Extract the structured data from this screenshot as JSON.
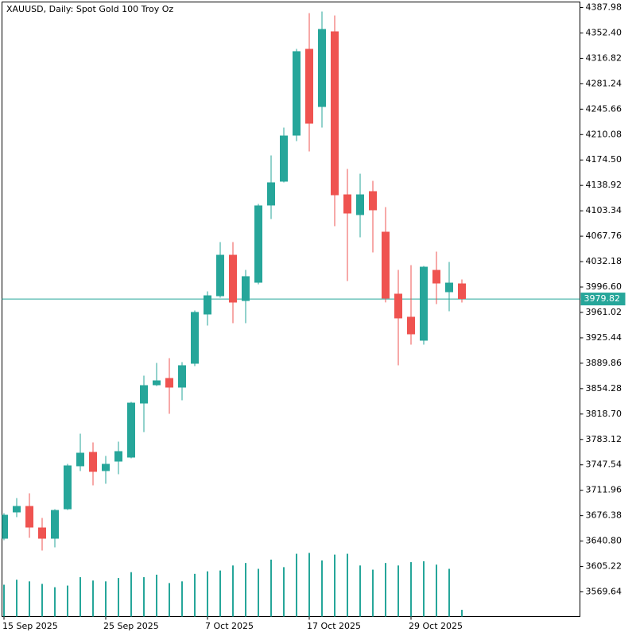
{
  "chart_data": {
    "type": "candlestick",
    "title": "XAUUSD, Daily:  Spot Gold 100 Troy Oz",
    "categories": [
      "15 Sep 2025",
      null,
      null,
      null,
      null,
      null,
      null,
      null,
      "25 Sep 2025",
      null,
      null,
      null,
      null,
      null,
      null,
      null,
      "7 Oct 2025",
      null,
      null,
      null,
      null,
      null,
      null,
      null,
      "17 Oct 2025",
      null,
      null,
      null,
      null,
      null,
      null,
      null,
      "29 Oct 2025",
      null,
      null,
      null,
      null
    ],
    "open": [
      3644.2,
      3681.0,
      3689.9,
      3659.8,
      3644.2,
      3685.4,
      3745.6,
      3765.6,
      3738.9,
      3752.2,
      3757.8,
      3833.5,
      3859.1,
      3869.1,
      3855.8,
      3889.2,
      3958.2,
      3983.8,
      4041.7,
      3977.1,
      4002.7,
      4110.8,
      4144.2,
      4208.7,
      4330.1,
      4248.8,
      4354.6,
      4126.3,
      4097.4,
      4130.8,
      4074.0,
      3987.2,
      3954.9,
      3921.5,
      4020.5,
      3989.4,
      4001.6
    ],
    "high": [
      3679.8,
      3701.0,
      3707.7,
      3673.2,
      3685.4,
      3748.9,
      3791.2,
      3779.0,
      3760.0,
      3780.1,
      3835.7,
      3872.5,
      3890.3,
      3897.0,
      3891.4,
      3963.8,
      3990.5,
      4059.5,
      4059.5,
      4020.5,
      4113.0,
      4180.9,
      4219.8,
      4330.1,
      4380.2,
      4382.4,
      4376.8,
      4162.0,
      4155.3,
      4145.3,
      4108.5,
      4020.5,
      4027.3,
      4026.1,
      4046.2,
      4031.7,
      4007.2
    ],
    "low": [
      3642.0,
      3674.3,
      3645.4,
      3627.5,
      3632.0,
      3684.3,
      3738.9,
      3718.8,
      3721.0,
      3734.4,
      3756.7,
      3793.4,
      3857.9,
      3819.0,
      3838.0,
      3885.9,
      3942.6,
      3981.6,
      3946.0,
      3946.0,
      4000.4,
      4091.8,
      4143.1,
      4200.9,
      4186.5,
      4219.8,
      4081.8,
      4005.0,
      4066.2,
      4045.1,
      3975.0,
      3887.0,
      3915.9,
      3915.9,
      3972.7,
      3962.7,
      3974.9
    ],
    "close": [
      3677.6,
      3689.9,
      3659.8,
      3644.2,
      3684.3,
      3746.7,
      3764.5,
      3737.8,
      3748.9,
      3766.7,
      3834.6,
      3859.1,
      3865.8,
      3855.8,
      3887.0,
      3961.6,
      3984.9,
      4041.7,
      3974.9,
      4011.7,
      4110.8,
      4143.1,
      4208.7,
      4326.8,
      4225.4,
      4357.9,
      4125.2,
      4099.6,
      4126.3,
      4104.1,
      3980.5,
      3952.7,
      3930.4,
      4025.0,
      4001.6,
      4002.7,
      3979.82
    ],
    "volume": [
      38,
      44,
      42,
      39,
      35,
      37,
      47,
      43,
      42,
      46,
      53,
      47,
      50,
      40,
      42,
      51,
      54,
      55,
      61,
      64,
      57,
      68,
      59,
      75,
      76,
      67,
      74,
      75,
      61,
      56,
      64,
      61,
      65,
      66,
      62,
      57,
      8
    ],
    "up_color": "#26a69a",
    "down_color": "#ef5350",
    "volume_color": "#26a69a",
    "last_price": 3979.82,
    "ylim": [
      3535.13,
      4395.77
    ],
    "yticks": [
      4387.98,
      {
        "value": 4352.4,
        "label": "4352.40"
      },
      4316.82,
      4281.24,
      4245.66,
      4210.08,
      {
        "value": 4174.5,
        "label": "4174.50"
      },
      4138.92,
      4103.34,
      4067.76,
      4032.18,
      {
        "value": 3996.6,
        "label": "3996.60"
      },
      3961.02,
      3925.44,
      3889.86,
      3854.28,
      {
        "value": 3818.7,
        "label": "3818.70"
      },
      3783.12,
      3747.54,
      3711.96,
      3676.38,
      {
        "value": 3640.8,
        "label": "3640.80"
      },
      3605.22,
      3569.64
    ]
  }
}
